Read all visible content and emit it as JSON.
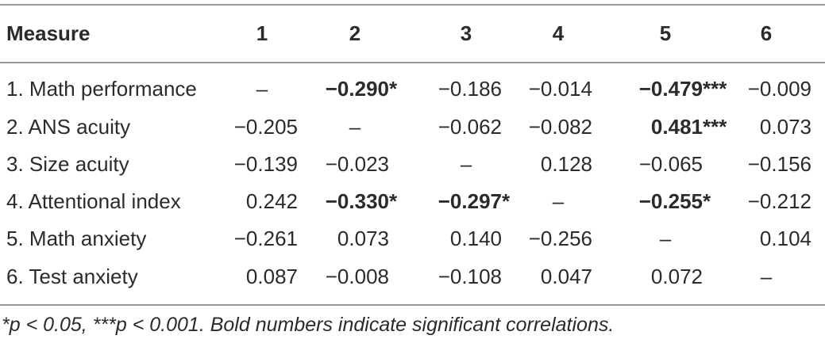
{
  "table": {
    "header": [
      "Measure",
      "1",
      "2",
      "3",
      "4",
      "5",
      "6"
    ],
    "rows": [
      [
        "1. Math performance",
        "–",
        "−0.290*",
        "−0.186",
        "−0.014",
        "−0.479***",
        "−0.009"
      ],
      [
        "2. ANS acuity",
        "−0.205",
        "–",
        "−0.062",
        "−0.082",
        "0.481***",
        "0.073"
      ],
      [
        "3. Size acuity",
        "−0.139",
        "−0.023",
        "–",
        "0.128",
        "−0.065",
        "−0.156"
      ],
      [
        "4. Attentional index",
        "0.242",
        "−0.330*",
        "−0.297*",
        "–",
        "−0.255*",
        "−0.212"
      ],
      [
        "5. Math anxiety",
        "−0.261",
        "0.073",
        "0.140",
        "−0.256",
        "–",
        "0.104"
      ],
      [
        "6. Test anxiety",
        "0.087",
        "−0.008",
        "−0.108",
        "0.047",
        "0.072",
        "–"
      ]
    ],
    "footnote": "*p < 0.05, ***p < 0.001. Bold numbers indicate significant correlations."
  }
}
